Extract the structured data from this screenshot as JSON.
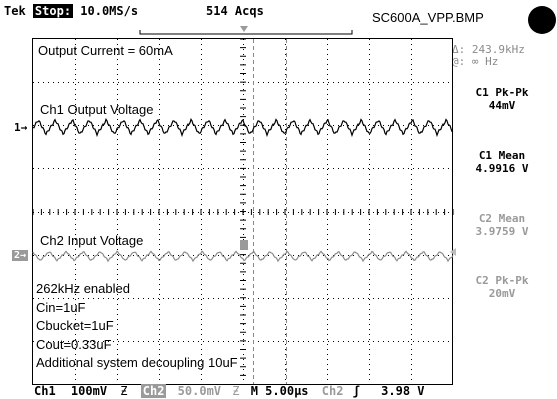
{
  "header": {
    "brand": "Tek",
    "run_state": "Stop:",
    "sample_rate": "10.0MS/s",
    "acquisitions": "514 Acqs",
    "filename": "SC600A_VPP.BMP"
  },
  "cursor_readout": {
    "delta": "Δ: 243.9kHz",
    "at": "@: ∞ Hz"
  },
  "measurements": [
    {
      "label": "C1 Pk-Pk",
      "value": "44mV",
      "dim": false
    },
    {
      "label": "C1 Mean",
      "value": "4.9916 V",
      "dim": false
    },
    {
      "label": "C2 Mean",
      "value": "3.9759 V",
      "dim": true
    },
    {
      "label": "C2 Pk-Pk",
      "value": "20mV",
      "dim": true
    }
  ],
  "annotations": {
    "output_current": "Output Current = 60mA",
    "ch1_label": "Ch1 Output Voltage",
    "ch2_label": "Ch2 Input Voltage",
    "notes": [
      "262kHz enabled",
      "Cin=1uF",
      "Cbucket=1uF",
      "Cout=0.33uF",
      "Additional system decoupling 10uF"
    ]
  },
  "markers": {
    "ch1": "1→",
    "ch2": "2→"
  },
  "status_bar": {
    "ch1_label": "Ch1",
    "ch1_scale": "100mV",
    "ch1_coupling": "Ƶ",
    "ch2_label": "Ch2",
    "ch2_scale": "50.0mV",
    "ch2_coupling": "Ƶ",
    "timebase": "M 5.00µs",
    "trigger_source": "Ch2",
    "trigger_slope": "ʃ",
    "trigger_level": "3.98 V"
  },
  "colors": {
    "trace_ch1": "#000000",
    "trace_ch2": "#8c8c8c",
    "graticule": "#000000",
    "dim_text": "#9a9a9a"
  }
}
